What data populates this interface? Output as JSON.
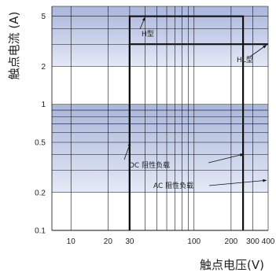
{
  "chart_data": {
    "type": "line",
    "xlabel": "触点电压(V)",
    "ylabel": "触点电流 (A)",
    "x_scale": "log",
    "y_scale": "log",
    "xlim": [
      7,
      400
    ],
    "ylim": [
      0.1,
      6
    ],
    "x_ticks": [
      "10",
      "20",
      "30",
      "100",
      "200",
      "300",
      "400"
    ],
    "y_ticks": [
      "5",
      "2",
      "1",
      "0.5",
      "0.2",
      "0.1"
    ],
    "grid": true,
    "series": [
      {
        "name": "H型",
        "x": [
          30,
          30,
          250,
          250
        ],
        "y": [
          0.1,
          5,
          5,
          0.1
        ]
      },
      {
        "name": "HL型",
        "x": [
          30,
          30,
          400
        ],
        "y": [
          0.1,
          3,
          3
        ]
      }
    ],
    "annotations": [
      {
        "text": "H型",
        "target": [
          40,
          5
        ]
      },
      {
        "text": "HL型",
        "target": [
          400,
          3
        ]
      },
      {
        "text": "DC 阻性负载",
        "target": [
          30,
          0.5
        ]
      },
      {
        "text": "AC 阻性负载",
        "target": [
          400,
          0.25
        ]
      }
    ],
    "colors": {
      "band": "#a9b6dc",
      "band_light": "#e4e9f6",
      "gridline": "#111111",
      "curve": "#111111"
    }
  }
}
